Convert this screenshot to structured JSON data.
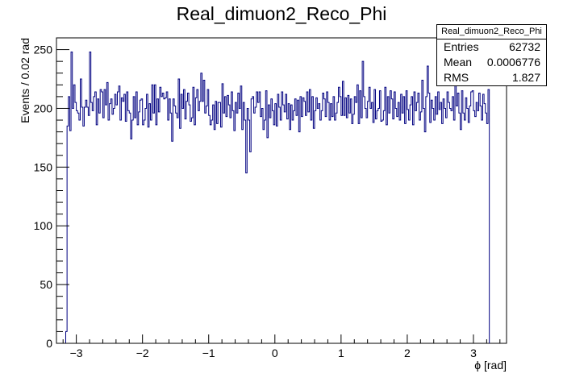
{
  "chart_data": {
    "type": "histogram",
    "title": "Real_dimuon2_Reco_Phi",
    "xlabel": "ϕ [rad]",
    "ylabel": "Events / 0.02 rad",
    "xlim": [
      -3.3,
      3.5
    ],
    "ylim": [
      0,
      260
    ],
    "x_ticks": [
      -3,
      -2,
      -1,
      0,
      1,
      2,
      3
    ],
    "x_tick_labels": [
      "−3",
      "−2",
      "−1",
      "0",
      "1",
      "2",
      "3"
    ],
    "y_ticks": [
      0,
      50,
      100,
      150,
      200,
      250
    ],
    "y_tick_labels": [
      "0",
      "50",
      "100",
      "150",
      "200",
      "250"
    ],
    "bin_start": -3.16,
    "bin_width": 0.02,
    "values": [
      10,
      185,
      210,
      181,
      248,
      200,
      220,
      205,
      198,
      196,
      190,
      225,
      201,
      185,
      201,
      207,
      201,
      194,
      248,
      205,
      198,
      210,
      214,
      186,
      208,
      196,
      216,
      214,
      192,
      216,
      203,
      222,
      190,
      204,
      208,
      195,
      200,
      212,
      203,
      214,
      219,
      190,
      209,
      206,
      212,
      189,
      214,
      198,
      196,
      174,
      190,
      210,
      192,
      214,
      186,
      197,
      207,
      208,
      186,
      190,
      200,
      212,
      184,
      204,
      190,
      220,
      196,
      220,
      186,
      208,
      197,
      218,
      210,
      213,
      208,
      209,
      214,
      190,
      208,
      196,
      172,
      208,
      202,
      196,
      192,
      225,
      183,
      212,
      200,
      216,
      191,
      206,
      213,
      203,
      189,
      192,
      218,
      186,
      209,
      216,
      198,
      206,
      230,
      206,
      224,
      196,
      202,
      216,
      194,
      186,
      190,
      203,
      182,
      206,
      187,
      205,
      205,
      184,
      221,
      196,
      210,
      193,
      211,
      203,
      192,
      214,
      198,
      181,
      205,
      196,
      213,
      200,
      219,
      182,
      205,
      190,
      145,
      200,
      190,
      163,
      208,
      210,
      196,
      201,
      214,
      205,
      214,
      193,
      200,
      182,
      190,
      215,
      175,
      203,
      192,
      208,
      198,
      186,
      204,
      185,
      212,
      201,
      190,
      214,
      203,
      197,
      212,
      191,
      204,
      182,
      203,
      190,
      198,
      208,
      194,
      207,
      180,
      210,
      193,
      209,
      206,
      194,
      214,
      197,
      216,
      190,
      210,
      183,
      198,
      209,
      200,
      204,
      190,
      198,
      213,
      208,
      193,
      214,
      205,
      190,
      204,
      193,
      210,
      190,
      196,
      205,
      218,
      210,
      194,
      223,
      194,
      209,
      192,
      211,
      196,
      208,
      187,
      195,
      210,
      205,
      220,
      187,
      215,
      192,
      240,
      210,
      200,
      192,
      206,
      218,
      200,
      205,
      188,
      216,
      191,
      198,
      200,
      215,
      189,
      190,
      198,
      218,
      186,
      210,
      196,
      215,
      208,
      191,
      214,
      200,
      193,
      205,
      190,
      212,
      196,
      210,
      187,
      215,
      199,
      190,
      203,
      210,
      186,
      214,
      198,
      205,
      213,
      190,
      197,
      224,
      200,
      180,
      210,
      236,
      213,
      188,
      207,
      200,
      190,
      210,
      195,
      214,
      199,
      205,
      187,
      208,
      200,
      192,
      214,
      205,
      200,
      198,
      210,
      190,
      223,
      202,
      213,
      196,
      182,
      215,
      196,
      190,
      209,
      200,
      188,
      202,
      214,
      215,
      198,
      193,
      205,
      198,
      213,
      202,
      190,
      212,
      204,
      196,
      187,
      216
    ],
    "stats_box": {
      "name": "Real_dimuon2_Reco_Phi",
      "entries_label": "Entries",
      "entries": "62732",
      "mean_label": "Mean",
      "mean": "0.0006776",
      "rms_label": "RMS",
      "rms": "1.827"
    },
    "line_color": "#000080",
    "axis_color": "#000000"
  }
}
